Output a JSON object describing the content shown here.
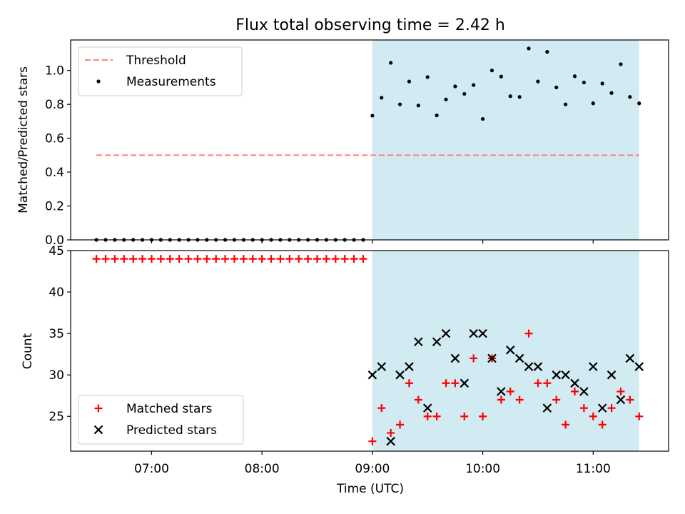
{
  "chart_data": [
    {
      "type": "scatter",
      "title": "Flux total observing time = 2.42 h",
      "xlabel": "",
      "ylabel": "Matched/Predicted stars",
      "xlim": [
        "06:16",
        "11:41"
      ],
      "ylim": [
        0,
        1.18
      ],
      "yticks": [
        0.0,
        0.2,
        0.4,
        0.6,
        0.8,
        1.0
      ],
      "ytick_labels": [
        "0.0",
        "0.2",
        "0.4",
        "0.6",
        "0.8",
        "1.0"
      ],
      "legend_position": "upper left",
      "shaded_interval": {
        "start": "09:00",
        "end": "11:25",
        "color": "#add8e6"
      },
      "threshold": {
        "name": "Threshold",
        "value": 0.5,
        "x": [
          "06:30",
          "11:25"
        ],
        "color": "#ff7f7f",
        "style": "dashed"
      },
      "series": [
        {
          "name": "Measurements",
          "color": "#000000",
          "marker": "dot",
          "x": [
            "06:30",
            "06:35",
            "06:40",
            "06:45",
            "06:50",
            "06:55",
            "07:00",
            "07:05",
            "07:10",
            "07:15",
            "07:20",
            "07:25",
            "07:30",
            "07:35",
            "07:40",
            "07:45",
            "07:50",
            "07:55",
            "08:00",
            "08:05",
            "08:10",
            "08:15",
            "08:20",
            "08:25",
            "08:30",
            "08:35",
            "08:40",
            "08:45",
            "08:50",
            "08:55",
            "09:00",
            "09:05",
            "09:10",
            "09:15",
            "09:20",
            "09:25",
            "09:30",
            "09:35",
            "09:40",
            "09:45",
            "09:50",
            "09:55",
            "10:00",
            "10:05",
            "10:10",
            "10:15",
            "10:20",
            "10:25",
            "10:30",
            "10:35",
            "10:40",
            "10:45",
            "10:50",
            "10:55",
            "11:00",
            "11:05",
            "11:10",
            "11:15",
            "11:20",
            "11:25"
          ],
          "y": [
            0,
            0,
            0,
            0,
            0,
            0,
            0,
            0,
            0,
            0,
            0,
            0,
            0,
            0,
            0,
            0,
            0,
            0,
            0,
            0,
            0,
            0,
            0,
            0,
            0,
            0,
            0,
            0,
            0,
            0,
            0.733,
            0.839,
            1.045,
            0.8,
            0.935,
            0.793,
            0.961,
            0.735,
            0.829,
            0.906,
            0.862,
            0.914,
            0.714,
            1.0,
            0.964,
            0.848,
            0.844,
            1.13,
            0.935,
            1.11,
            0.9,
            0.8,
            0.966,
            0.929,
            0.806,
            0.923,
            0.867,
            1.037,
            0.844,
            0.806
          ]
        }
      ]
    },
    {
      "type": "scatter",
      "title": "",
      "xlabel": "Time (UTC)",
      "ylabel": "Count",
      "xlim": [
        "06:16",
        "11:41"
      ],
      "ylim": [
        20.8,
        45
      ],
      "yticks": [
        25,
        30,
        35,
        40,
        45
      ],
      "ytick_labels": [
        "25",
        "30",
        "35",
        "40",
        "45"
      ],
      "xticks": [
        "07:00",
        "08:00",
        "09:00",
        "10:00",
        "11:00"
      ],
      "xtick_labels": [
        "07:00",
        "08:00",
        "09:00",
        "10:00",
        "11:00"
      ],
      "legend_position": "lower left",
      "shaded_interval": {
        "start": "09:00",
        "end": "11:25",
        "color": "#add8e6"
      },
      "series": [
        {
          "name": "Matched stars",
          "color": "#ff0000",
          "marker": "plus",
          "x": [
            "06:30",
            "06:35",
            "06:40",
            "06:45",
            "06:50",
            "06:55",
            "07:00",
            "07:05",
            "07:10",
            "07:15",
            "07:20",
            "07:25",
            "07:30",
            "07:35",
            "07:40",
            "07:45",
            "07:50",
            "07:55",
            "08:00",
            "08:05",
            "08:10",
            "08:15",
            "08:20",
            "08:25",
            "08:30",
            "08:35",
            "08:40",
            "08:45",
            "08:50",
            "08:55",
            "09:00",
            "09:05",
            "09:10",
            "09:15",
            "09:20",
            "09:25",
            "09:30",
            "09:35",
            "09:40",
            "09:45",
            "09:50",
            "09:55",
            "10:00",
            "10:05",
            "10:10",
            "10:15",
            "10:20",
            "10:25",
            "10:30",
            "10:35",
            "10:40",
            "10:45",
            "10:50",
            "10:55",
            "11:00",
            "11:05",
            "11:10",
            "11:15",
            "11:20",
            "11:25"
          ],
          "y": [
            44,
            44,
            44,
            44,
            44,
            44,
            44,
            44,
            44,
            44,
            44,
            44,
            44,
            44,
            44,
            44,
            44,
            44,
            44,
            44,
            44,
            44,
            44,
            44,
            44,
            44,
            44,
            44,
            44,
            44,
            22,
            26,
            23,
            24,
            29,
            27,
            25,
            25,
            29,
            29,
            25,
            32,
            25,
            32,
            27,
            28,
            27,
            35,
            29,
            29,
            27,
            24,
            28,
            26,
            25,
            24,
            26,
            28,
            27,
            25
          ]
        },
        {
          "name": "Predicted stars",
          "color": "#000000",
          "marker": "x",
          "x": [
            "09:00",
            "09:05",
            "09:10",
            "09:15",
            "09:20",
            "09:25",
            "09:30",
            "09:35",
            "09:40",
            "09:45",
            "09:50",
            "09:55",
            "10:00",
            "10:05",
            "10:10",
            "10:15",
            "10:20",
            "10:25",
            "10:30",
            "10:35",
            "10:40",
            "10:45",
            "10:50",
            "10:55",
            "11:00",
            "11:05",
            "11:10",
            "11:15",
            "11:20",
            "11:25"
          ],
          "y": [
            30,
            31,
            22,
            30,
            31,
            34,
            26,
            34,
            35,
            32,
            29,
            35,
            35,
            32,
            28,
            33,
            32,
            31,
            31,
            26,
            30,
            30,
            29,
            28,
            31,
            26,
            30,
            27,
            32,
            31
          ]
        }
      ]
    }
  ]
}
